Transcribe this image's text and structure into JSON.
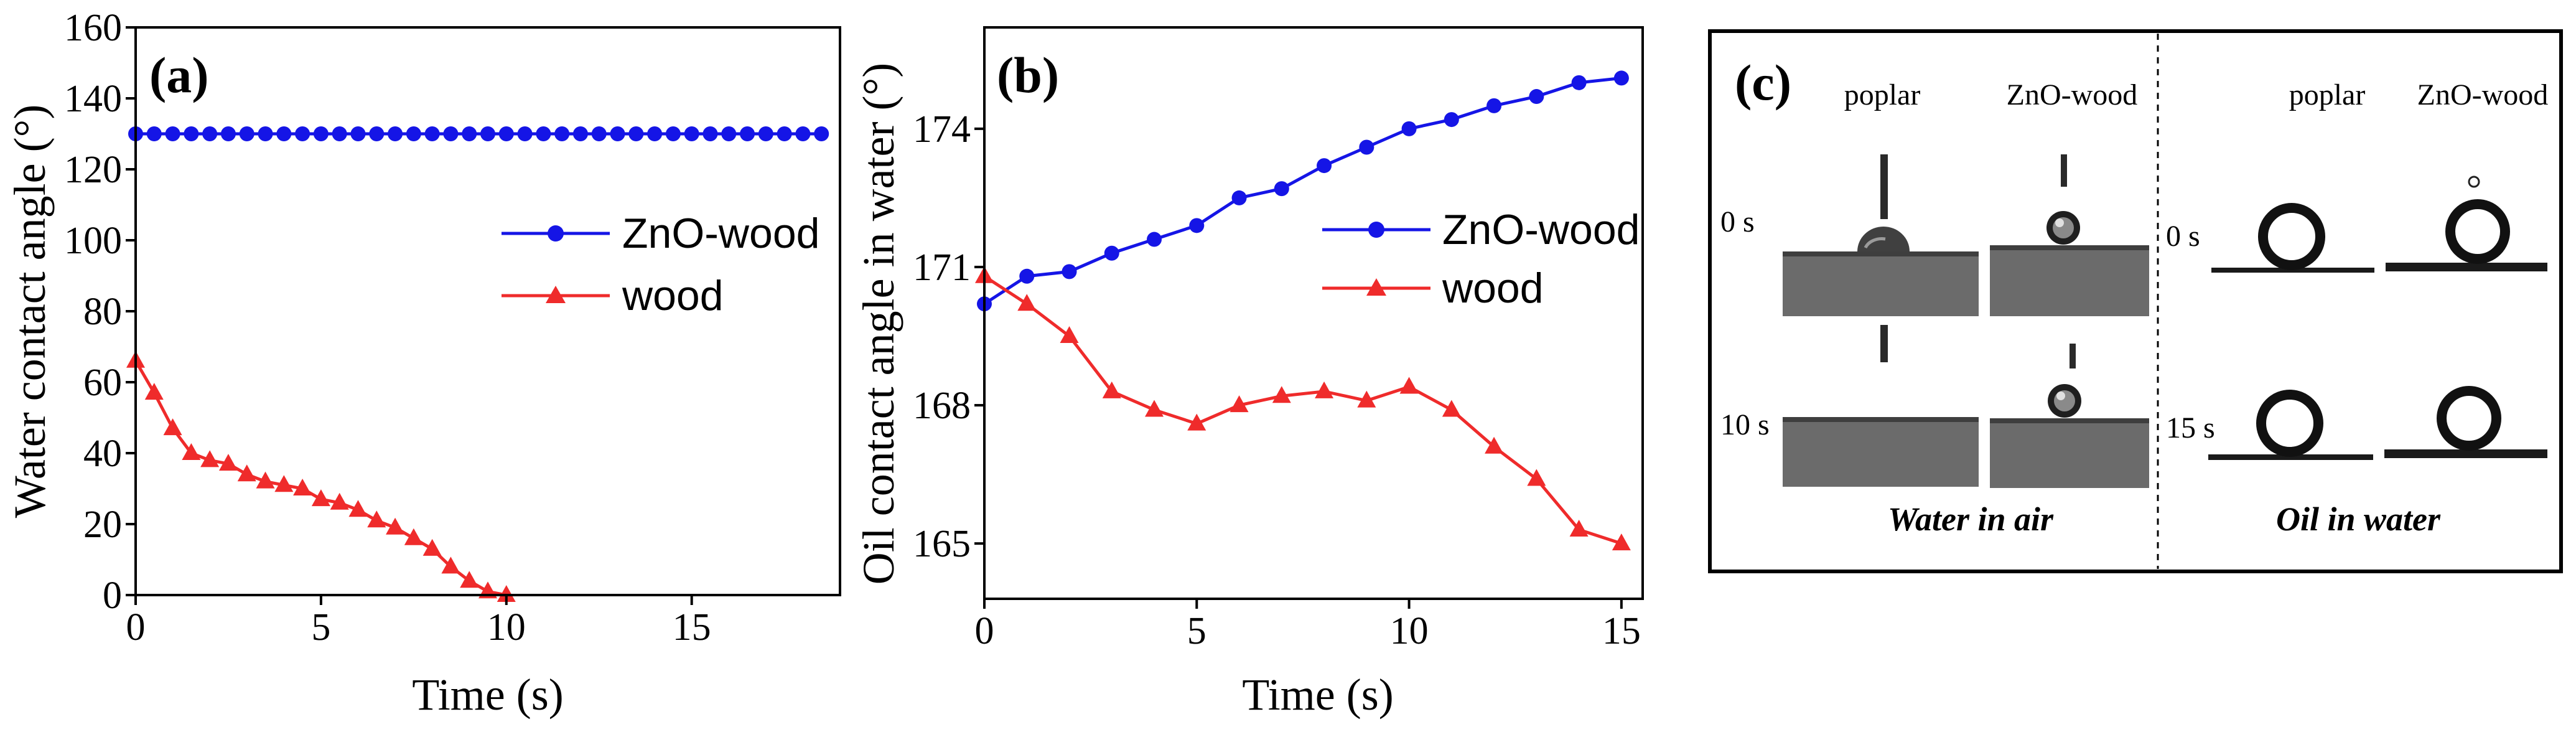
{
  "colors": {
    "znO": "#1515e6",
    "wood": "#ef2b2b",
    "axis": "#000000"
  },
  "chart_data": [
    {
      "panel": "(a)",
      "type": "line",
      "xlabel": "Time (s)",
      "ylabel": "Water contact angle (°)",
      "xlim": [
        0,
        19
      ],
      "ylim": [
        0,
        160
      ],
      "xticks": [
        0,
        5,
        10,
        15
      ],
      "yticks": [
        0,
        20,
        40,
        60,
        80,
        100,
        120,
        140,
        160
      ],
      "tick_labels_x": [
        "0",
        "5",
        "10",
        "15"
      ],
      "tick_labels_y": [
        "0",
        "20",
        "40",
        "60",
        "80",
        "100",
        "120",
        "140",
        "160"
      ],
      "legend": [
        "ZnO-wood",
        "wood"
      ],
      "series": [
        {
          "name": "ZnO-wood",
          "marker": "circle",
          "color": "#1515e6",
          "x": [
            0,
            0.5,
            1,
            1.5,
            2,
            2.5,
            3,
            3.5,
            4,
            4.5,
            5,
            5.5,
            6,
            6.5,
            7,
            7.5,
            8,
            8.5,
            9,
            9.5,
            10,
            10.5,
            11,
            11.5,
            12,
            12.5,
            13,
            13.5,
            14,
            14.5,
            15,
            15.5,
            16,
            16.5,
            17,
            17.5,
            18,
            18.5
          ],
          "y": [
            130,
            130,
            130,
            130,
            130,
            130,
            130,
            130,
            130,
            130,
            130,
            130,
            130,
            130,
            130,
            130,
            130,
            130,
            130,
            130,
            130,
            130,
            130,
            130,
            130,
            130,
            130,
            130,
            130,
            130,
            130,
            130,
            130,
            130,
            130,
            130,
            130,
            130
          ]
        },
        {
          "name": "wood",
          "marker": "triangle",
          "color": "#ef2b2b",
          "x": [
            0,
            0.5,
            1,
            1.5,
            2,
            2.5,
            3,
            3.5,
            4,
            4.5,
            5,
            5.5,
            6,
            6.5,
            7,
            7.5,
            8,
            8.5,
            9,
            9.5,
            10
          ],
          "y": [
            66,
            57,
            47,
            40,
            38,
            37,
            34,
            32,
            31,
            30,
            27,
            26,
            24,
            21,
            19,
            16,
            13,
            8,
            4,
            1,
            0
          ]
        }
      ]
    },
    {
      "panel": "(b)",
      "type": "line",
      "xlabel": "Time (s)",
      "ylabel": "Oil contact angle in water (°)",
      "xlim": [
        0,
        15.5
      ],
      "ylim": [
        163.8,
        176.2
      ],
      "xticks": [
        0,
        5,
        10,
        15
      ],
      "yticks": [
        165,
        168,
        171,
        174
      ],
      "tick_labels_x": [
        "0",
        "5",
        "10",
        "15"
      ],
      "tick_labels_y": [
        "165",
        "168",
        "171",
        "174"
      ],
      "legend": [
        "ZnO-wood",
        "wood"
      ],
      "series": [
        {
          "name": "ZnO-wood",
          "marker": "circle",
          "color": "#1515e6",
          "x": [
            0,
            1,
            2,
            3,
            4,
            5,
            6,
            7,
            8,
            9,
            10,
            11,
            12,
            13,
            14,
            15
          ],
          "y": [
            170.2,
            170.8,
            170.9,
            171.3,
            171.6,
            171.9,
            172.5,
            172.7,
            173.2,
            173.6,
            174.0,
            174.2,
            174.5,
            174.7,
            175.0,
            175.1
          ]
        },
        {
          "name": "wood",
          "marker": "triangle",
          "color": "#ef2b2b",
          "x": [
            0,
            1,
            2,
            3,
            4,
            5,
            6,
            7,
            8,
            9,
            10,
            11,
            12,
            13,
            14,
            15
          ],
          "y": [
            170.8,
            170.2,
            169.5,
            168.3,
            167.9,
            167.6,
            168.0,
            168.2,
            168.3,
            168.1,
            168.4,
            167.9,
            167.1,
            166.4,
            165.3,
            165.0
          ]
        }
      ]
    }
  ],
  "panel_c": {
    "label": "(c)",
    "left_group": {
      "columns": [
        "poplar",
        "ZnO-wood"
      ],
      "rows": [
        "0 s",
        "10 s"
      ],
      "caption": "Water in air"
    },
    "right_group": {
      "columns": [
        "poplar",
        "ZnO-wood"
      ],
      "rows": [
        "0 s",
        "15 s"
      ],
      "caption": "Oil in water"
    }
  }
}
